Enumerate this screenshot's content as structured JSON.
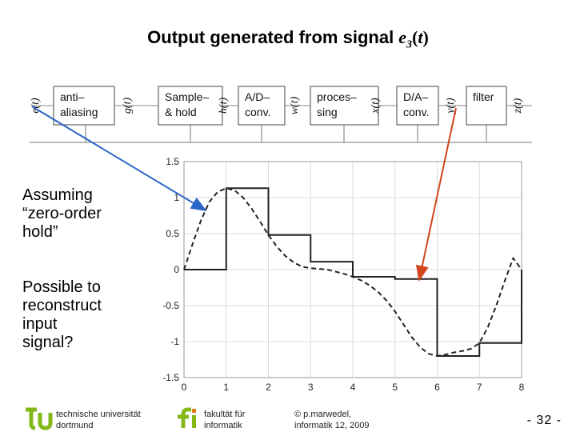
{
  "title": {
    "prefix": "Output generated from signal ",
    "signal_var": "e",
    "signal_sub": "3",
    "signal_arg": "t"
  },
  "chain": {
    "signals": [
      "e(t)",
      "g(t)",
      "h(t)",
      "w(t)",
      "x(t)",
      "y(t)",
      "z(t)"
    ],
    "blocks": [
      {
        "lines": [
          "anti–",
          "aliasing"
        ]
      },
      {
        "lines": [
          "Sample–",
          "& hold"
        ]
      },
      {
        "lines": [
          "A/D–",
          "conv."
        ]
      },
      {
        "lines": [
          "proces–",
          "sing"
        ]
      },
      {
        "lines": [
          "D/A–",
          "conv."
        ]
      },
      {
        "lines": [
          "filter"
        ]
      }
    ]
  },
  "side_text": {
    "assumption": [
      "Assuming",
      "“zero-order",
      "hold”"
    ],
    "question": [
      "Possible to",
      "reconstruct",
      "input",
      "signal?"
    ]
  },
  "chart_data": {
    "type": "line",
    "xlim": [
      0,
      8
    ],
    "ylim": [
      -1.5,
      1.5
    ],
    "xticks": [
      "0",
      "1",
      "2",
      "3",
      "4",
      "5",
      "6",
      "7",
      "8"
    ],
    "yticks": [
      "1.5",
      "1",
      "0.5",
      "0",
      "-0.5",
      "-1",
      "-1.5"
    ],
    "grid": true,
    "series": [
      {
        "style": "dashed",
        "x": [
          0,
          0.2,
          0.4,
          0.6,
          0.8,
          1.0,
          1.2,
          1.4,
          1.6,
          1.8,
          2.0,
          2.2,
          2.4,
          2.6,
          2.8,
          3.0,
          3.2,
          3.4,
          3.6,
          3.8,
          4.0,
          4.2,
          4.4,
          4.6,
          4.8,
          5.0,
          5.2,
          5.4,
          5.6,
          5.8,
          6.0,
          6.2,
          6.4,
          6.6,
          6.8,
          7.0,
          7.2,
          7.4,
          7.6,
          7.8,
          8.0
        ],
        "y": [
          0,
          0.35,
          0.68,
          0.94,
          1.08,
          1.13,
          1.1,
          1.0,
          0.85,
          0.67,
          0.48,
          0.32,
          0.19,
          0.1,
          0.04,
          0.02,
          0.01,
          0.0,
          -0.03,
          -0.06,
          -0.1,
          -0.15,
          -0.22,
          -0.31,
          -0.43,
          -0.58,
          -0.76,
          -0.94,
          -1.08,
          -1.17,
          -1.2,
          -1.18,
          -1.15,
          -1.13,
          -1.1,
          -1.02,
          -0.8,
          -0.5,
          -0.16,
          0.16,
          0.0
        ]
      },
      {
        "style": "solid-step",
        "x": [
          0,
          1,
          2,
          3,
          4,
          5,
          6,
          7,
          8
        ],
        "y": [
          0,
          1.13,
          0.48,
          0.11,
          -0.1,
          -0.13,
          -1.2,
          -1.02,
          0.0
        ]
      }
    ]
  },
  "footer": {
    "university": [
      "technische universität",
      "dortmund"
    ],
    "faculty": [
      "fakultät für",
      "informatik"
    ],
    "copyright": [
      "© p.marwedel,",
      "informatik 12,  2009"
    ],
    "page_number": "-  32 -"
  },
  "colors": {
    "blue_arrow": "#2a65c8",
    "orange_arrow": "#d2461e",
    "logo_green": "#84b819",
    "grid": "#dcdcdc"
  }
}
